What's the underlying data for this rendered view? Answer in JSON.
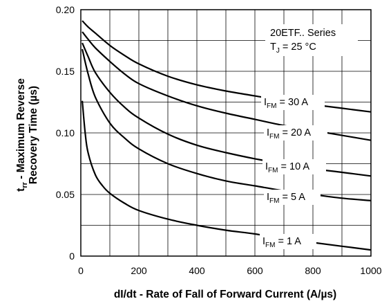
{
  "chart_data": {
    "type": "line",
    "xlabel": "dI/dt - Rate of Fall of Forward Current (A/µs)",
    "ylabel_line1": "t",
    "ylabel_line1_sub": "rr",
    "ylabel_line1_rest": " - Maximum Reverse",
    "ylabel_line2": "Recovery Time (µs)",
    "xlim": [
      0,
      1000
    ],
    "ylim": [
      0,
      0.2
    ],
    "x_ticks": [
      0,
      200,
      400,
      600,
      800,
      1000
    ],
    "y_ticks": [
      0,
      0.05,
      0.1,
      0.15,
      0.2
    ],
    "x_tick_labels": [
      "0",
      "200",
      "400",
      "600",
      "800",
      "1000"
    ],
    "y_tick_labels": [
      "0",
      "0.05",
      "0.10",
      "0.15",
      "0.20"
    ],
    "grid": true,
    "annotation": {
      "series_line": "20ETF.. Series",
      "temp_main": "T",
      "temp_sub": "J",
      "temp_rest": " = 25 °C"
    },
    "series": [
      {
        "label_main": "I",
        "label_sub": "FM",
        "label_rest": " = 30 A",
        "x": [
          5,
          25,
          50,
          100,
          150,
          200,
          300,
          400,
          500,
          600,
          700,
          800,
          900,
          1000
        ],
        "y": [
          0.191,
          0.186,
          0.181,
          0.171,
          0.163,
          0.156,
          0.146,
          0.139,
          0.134,
          0.13,
          0.126,
          0.123,
          0.12,
          0.117
        ]
      },
      {
        "label_main": "I",
        "label_sub": "FM",
        "label_rest": " = 20 A",
        "x": [
          5,
          25,
          50,
          100,
          150,
          200,
          300,
          400,
          500,
          600,
          700,
          800,
          900,
          1000
        ],
        "y": [
          0.182,
          0.176,
          0.169,
          0.158,
          0.148,
          0.14,
          0.13,
          0.122,
          0.116,
          0.111,
          0.106,
          0.102,
          0.098,
          0.094
        ]
      },
      {
        "label_main": "I",
        "label_sub": "FM",
        "label_rest": " = 10 A",
        "x": [
          5,
          25,
          50,
          100,
          150,
          200,
          300,
          400,
          500,
          600,
          700,
          800,
          900,
          1000
        ],
        "y": [
          0.173,
          0.162,
          0.149,
          0.133,
          0.121,
          0.112,
          0.099,
          0.09,
          0.084,
          0.079,
          0.075,
          0.071,
          0.068,
          0.065
        ]
      },
      {
        "label_main": "I",
        "label_sub": "FM",
        "label_rest": " = 5 A",
        "x": [
          5,
          25,
          50,
          100,
          150,
          200,
          300,
          400,
          500,
          600,
          700,
          800,
          900,
          1000
        ],
        "y": [
          0.168,
          0.148,
          0.129,
          0.108,
          0.096,
          0.087,
          0.075,
          0.067,
          0.061,
          0.057,
          0.053,
          0.05,
          0.047,
          0.045
        ]
      },
      {
        "label_main": "I",
        "label_sub": "FM",
        "label_rest": " = 1 A",
        "x": [
          5,
          15,
          25,
          50,
          75,
          100,
          150,
          200,
          300,
          400,
          500,
          600,
          700,
          800,
          900,
          1000
        ],
        "y": [
          0.126,
          0.1,
          0.084,
          0.066,
          0.057,
          0.051,
          0.043,
          0.037,
          0.03,
          0.025,
          0.021,
          0.018,
          0.014,
          0.011,
          0.008,
          0.005
        ]
      }
    ]
  }
}
